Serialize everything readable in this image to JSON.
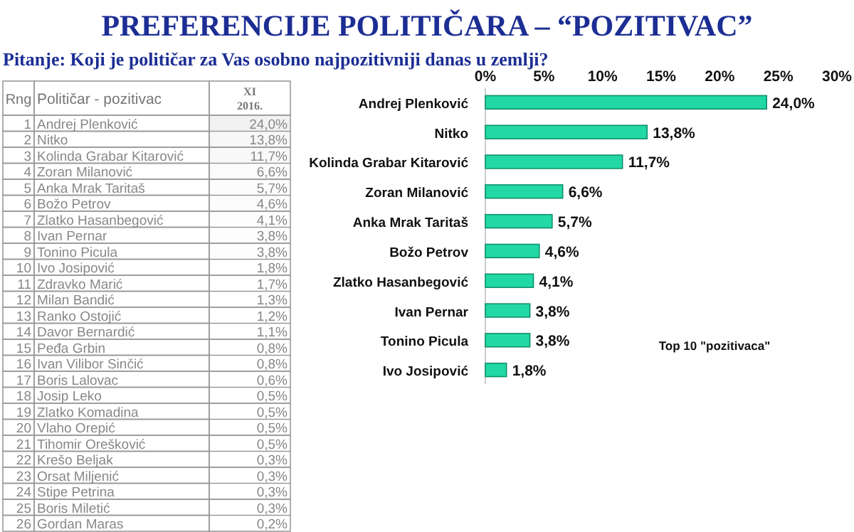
{
  "chart_data": [
    {
      "type": "heatmap",
      "title": "PREFERENCIJE POLITIČARA – “POZITIVAC”",
      "subtitle": "Pitanje: Koji je političar za Vas osobno najpozitivniji danas u zemlji?",
      "annotations": [
        "Rng",
        "Političar - pozitivac"
      ],
      "categories": [
        "XI 2016."
      ],
      "y2_categories": [
        "1",
        "2",
        "3",
        "4",
        "5",
        "6",
        "7",
        "8",
        "9",
        "10",
        "11",
        "12",
        "13",
        "14",
        "15",
        "16",
        "17",
        "18",
        "19",
        "20",
        "21",
        "22",
        "23",
        "24",
        "25",
        "26"
      ],
      "y_categories": [
        "Andrej Plenković",
        "Nitko",
        "Kolinda Grabar Kitarović",
        "Zoran Milanović",
        "Anka Mrak Taritaš",
        "Božo Petrov",
        "Zlatko Hasanbegović",
        "Ivan Pernar",
        "Tonino Picula",
        "Ivo Josipović",
        "Zdravko Marić",
        "Milan Bandić",
        "Ranko Ostojić",
        "Davor Bernardić",
        "Peđa Grbin",
        "Ivan Vilibor Sinčić",
        "Boris Lalovac",
        "Josip Leko",
        "Zlatko Komadina",
        "Vlaho Orepić",
        "Tihomir Orešković",
        "Krešo Beljak",
        "Orsat Miljenić",
        "Stipe Petrina",
        "Boris Miletić",
        "Gordan Maras"
      ],
      "cells": [
        [
          24.0
        ],
        [
          13.8
        ],
        [
          11.7
        ],
        [
          6.6
        ],
        [
          5.7
        ],
        [
          4.6
        ],
        [
          4.1
        ],
        [
          3.8
        ],
        [
          3.8
        ],
        [
          1.8
        ],
        [
          1.7
        ],
        [
          1.3
        ],
        [
          1.2
        ],
        [
          1.1
        ],
        [
          0.8
        ],
        [
          0.8
        ],
        [
          0.6
        ],
        [
          0.5
        ],
        [
          0.5
        ],
        [
          0.5
        ],
        [
          0.5
        ],
        [
          0.3
        ],
        [
          0.3
        ],
        [
          0.3
        ],
        [
          0.3
        ],
        [
          0.2
        ]
      ],
      "cell_labels": [
        [
          "24,0%"
        ],
        [
          "13,8%"
        ],
        [
          "11,7%"
        ],
        [
          "6,6%"
        ],
        [
          "5,7%"
        ],
        [
          "4,6%"
        ],
        [
          "4,1%"
        ],
        [
          "3,8%"
        ],
        [
          "3,8%"
        ],
        [
          "1,8%"
        ],
        [
          "1,7%"
        ],
        [
          "1,3%"
        ],
        [
          "1,2%"
        ],
        [
          "1,1%"
        ],
        [
          "0,8%"
        ],
        [
          "0,8%"
        ],
        [
          "0,6%"
        ],
        [
          "0,5%"
        ],
        [
          "0,5%"
        ],
        [
          "0,5%"
        ],
        [
          "0,5%"
        ],
        [
          "0,3%"
        ],
        [
          "0,3%"
        ],
        [
          "0,3%"
        ],
        [
          "0,3%"
        ],
        [
          "0,2%"
        ]
      ]
    },
    {
      "type": "bar",
      "orientation": "horizontal",
      "color": "#22d9a6",
      "categories": [
        "Andrej Plenković",
        "Nitko",
        "Kolinda Grabar Kitarović",
        "Zoran Milanović",
        "Anka Mrak Taritaš",
        "Božo Petrov",
        "Zlatko Hasanbegović",
        "Ivan Pernar",
        "Tonino Picula",
        "Ivo Josipović"
      ],
      "values": [
        24.0,
        13.8,
        11.7,
        6.6,
        5.7,
        4.6,
        4.1,
        3.8,
        3.8,
        1.8
      ],
      "value_labels": [
        "24,0%",
        "13,8%",
        "11,7%",
        "6,6%",
        "5,7%",
        "4,6%",
        "4,1%",
        "3,8%",
        "3,8%",
        "1,8%"
      ],
      "xlim": [
        0,
        30
      ],
      "xticks": [
        {
          "value": 0,
          "label": "0%"
        },
        {
          "value": 5,
          "label": "5%"
        },
        {
          "value": 10,
          "label": "10%"
        },
        {
          "value": 15,
          "label": "15%"
        },
        {
          "value": 20,
          "label": "20%"
        },
        {
          "value": 25,
          "label": "25%"
        },
        {
          "value": 30,
          "label": "30%"
        }
      ],
      "annotations": [
        "Top 10 \"pozitivaca\""
      ]
    }
  ]
}
